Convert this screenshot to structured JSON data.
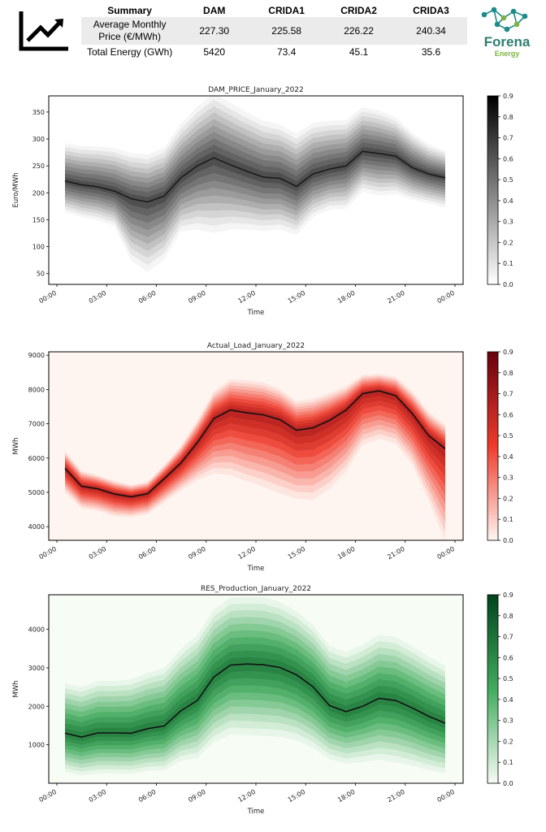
{
  "summary": {
    "header": [
      "Summary",
      "DAM",
      "CRIDA1",
      "CRIDA2",
      "CRIDA3"
    ],
    "rows": [
      {
        "label": "Average Monthly Price (€/MWh)",
        "values": [
          "227.30",
          "225.58",
          "226.22",
          "240.34"
        ]
      },
      {
        "label": "Total Energy (GWh)",
        "values": [
          "5420",
          "73.4",
          "45.1",
          "35.6"
        ]
      }
    ]
  },
  "brand": {
    "name": "Forena",
    "tagline": "Energy",
    "colors": {
      "name": "#2e7d6e",
      "tagline": "#7cb342",
      "nodes": "#1f8a8a"
    }
  },
  "icons": {
    "summary": "line-chart-trend-up-icon",
    "brand": "network-nodes-logo-icon"
  },
  "chart_data": [
    {
      "type": "area",
      "title": "DAM_PRICE_January_2022",
      "xlabel": "Time",
      "ylabel": "Euro/MWh",
      "x_ticks": [
        "00:00",
        "03:00",
        "06:00",
        "09:00",
        "12:00",
        "15:00",
        "18:00",
        "21:00",
        "00:00"
      ],
      "x": [
        "00:00",
        "01:00",
        "02:00",
        "03:00",
        "04:00",
        "05:00",
        "06:00",
        "07:00",
        "08:00",
        "09:00",
        "10:00",
        "11:00",
        "12:00",
        "13:00",
        "14:00",
        "15:00",
        "16:00",
        "17:00",
        "18:00",
        "19:00",
        "20:00",
        "21:00",
        "22:00",
        "23:00"
      ],
      "median": [
        222,
        215,
        211,
        203,
        189,
        183,
        194,
        228,
        250,
        265,
        252,
        240,
        229,
        227,
        212,
        235,
        244,
        250,
        277,
        273,
        268,
        247,
        235,
        228
      ],
      "spread_low": [
        58,
        60,
        62,
        65,
        115,
        130,
        118,
        100,
        118,
        140,
        120,
        108,
        100,
        95,
        90,
        80,
        75,
        80,
        75,
        78,
        70,
        60,
        55,
        55
      ],
      "spread_high": [
        70,
        72,
        75,
        80,
        85,
        88,
        90,
        100,
        110,
        120,
        115,
        110,
        105,
        100,
        98,
        95,
        90,
        85,
        82,
        80,
        72,
        65,
        55,
        50
      ],
      "ylim": [
        30,
        380
      ],
      "y_ticks": [
        50,
        100,
        150,
        200,
        250,
        300,
        350
      ],
      "colorbar": {
        "colormap": "Greys",
        "range": [
          0,
          0.9
        ],
        "ticks": [
          "0.0",
          "0.1",
          "0.2",
          "0.3",
          "0.4",
          "0.5",
          "0.6",
          "0.7",
          "0.8",
          "0.9"
        ]
      },
      "colors": {
        "dark": "#000000",
        "light": "#ffffff",
        "background": "#ffffff",
        "line": "#1a1a1a"
      },
      "grid": false
    },
    {
      "type": "area",
      "title": "Actual_Load_January_2022",
      "xlabel": "Time",
      "ylabel": "MWh",
      "x_ticks": [
        "00:00",
        "03:00",
        "06:00",
        "09:00",
        "12:00",
        "15:00",
        "18:00",
        "21:00",
        "00:00"
      ],
      "x": [
        "00:00",
        "01:00",
        "02:00",
        "03:00",
        "04:00",
        "05:00",
        "06:00",
        "07:00",
        "08:00",
        "09:00",
        "10:00",
        "11:00",
        "12:00",
        "13:00",
        "14:00",
        "15:00",
        "16:00",
        "17:00",
        "18:00",
        "19:00",
        "20:00",
        "21:00",
        "22:00",
        "23:00"
      ],
      "median": [
        5700,
        5180,
        5100,
        4950,
        4870,
        4960,
        5400,
        5850,
        6450,
        7150,
        7400,
        7320,
        7260,
        7120,
        6810,
        6880,
        7100,
        7400,
        7880,
        7960,
        7820,
        7300,
        6650,
        6270
      ],
      "spread_low": [
        700,
        650,
        650,
        650,
        600,
        600,
        700,
        800,
        1100,
        1600,
        1900,
        2000,
        2100,
        2150,
        2000,
        2100,
        2000,
        1800,
        1500,
        1400,
        1400,
        1500,
        1900,
        2700
      ],
      "spread_high": [
        500,
        450,
        400,
        380,
        350,
        350,
        400,
        500,
        650,
        800,
        900,
        950,
        950,
        900,
        850,
        850,
        800,
        700,
        550,
        500,
        550,
        650,
        700,
        700
      ],
      "ylim": [
        3600,
        9100
      ],
      "y_ticks": [
        4000,
        5000,
        6000,
        7000,
        8000,
        9000
      ],
      "colorbar": {
        "colormap": "Reds",
        "range": [
          0,
          0.9
        ],
        "ticks": [
          "0.0",
          "0.1",
          "0.2",
          "0.3",
          "0.4",
          "0.5",
          "0.6",
          "0.7",
          "0.8",
          "0.9"
        ]
      },
      "colors": {
        "dark": "#67000d",
        "mid": "#ef3b2c",
        "light": "#fff5f0",
        "background": "#fff5f0",
        "line": "#111111"
      },
      "grid": false
    },
    {
      "type": "area",
      "title": "RES_Production_January_2022",
      "xlabel": "Time",
      "ylabel": "MWh",
      "x_ticks": [
        "00:00",
        "03:00",
        "06:00",
        "09:00",
        "12:00",
        "15:00",
        "18:00",
        "21:00",
        "00:00"
      ],
      "x": [
        "00:00",
        "01:00",
        "02:00",
        "03:00",
        "04:00",
        "05:00",
        "06:00",
        "07:00",
        "08:00",
        "09:00",
        "10:00",
        "11:00",
        "12:00",
        "13:00",
        "14:00",
        "15:00",
        "16:00",
        "17:00",
        "18:00",
        "19:00",
        "20:00",
        "21:00",
        "22:00",
        "23:00"
      ],
      "median": [
        1300,
        1200,
        1310,
        1310,
        1300,
        1420,
        1490,
        1880,
        2150,
        2760,
        3070,
        3100,
        3080,
        3010,
        2820,
        2510,
        2020,
        1860,
        2000,
        2210,
        2150,
        1960,
        1740,
        1560
      ],
      "spread_low": [
        1000,
        1000,
        1050,
        1050,
        1050,
        1100,
        1150,
        1300,
        1500,
        1700,
        1800,
        1850,
        1850,
        1800,
        1700,
        1600,
        1400,
        1350,
        1450,
        1600,
        1600,
        1500,
        1400,
        1300
      ],
      "spread_high": [
        1300,
        1300,
        1350,
        1350,
        1400,
        1450,
        1500,
        1600,
        1700,
        1750,
        1750,
        1750,
        1750,
        1700,
        1650,
        1600,
        1550,
        1550,
        1600,
        1650,
        1650,
        1600,
        1550,
        1500
      ],
      "ylim": [
        0,
        4900
      ],
      "y_ticks": [
        1000,
        2000,
        3000,
        4000
      ],
      "colorbar": {
        "colormap": "Greens",
        "range": [
          0,
          0.9
        ],
        "ticks": [
          "0.0",
          "0.1",
          "0.2",
          "0.3",
          "0.4",
          "0.5",
          "0.6",
          "0.7",
          "0.8",
          "0.9"
        ]
      },
      "colors": {
        "dark": "#00441b",
        "mid": "#41ab5d",
        "light": "#f7fcf5",
        "background": "#f7fcf5",
        "line": "#111111"
      },
      "grid": false
    }
  ]
}
